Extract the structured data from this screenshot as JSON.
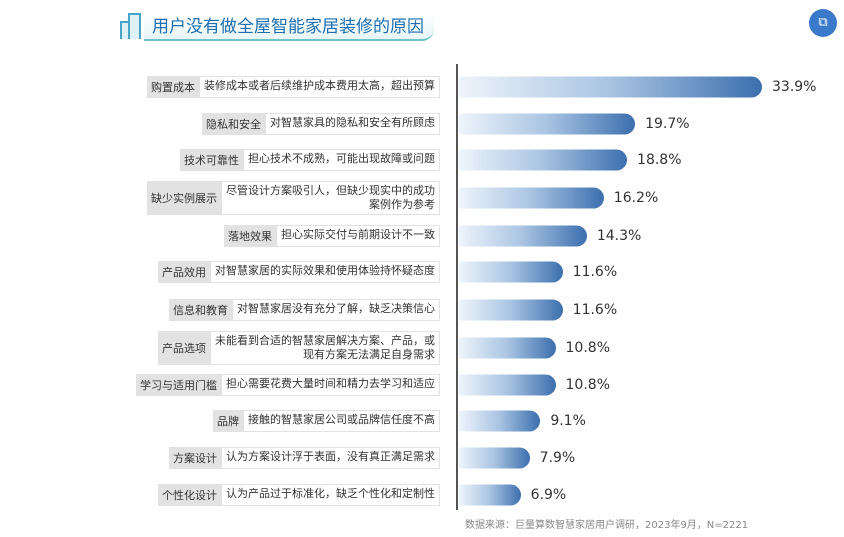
{
  "title": "用户没有做全屋智能家居装修的原因",
  "source": "数据来源：巨量算数智慧家居用户调研，2023年9月，N=2221",
  "colors": {
    "bar_end": "#3c6fae",
    "bar_start": "#eef4fb",
    "title": "#1f6fb0"
  },
  "chart_data": {
    "type": "bar",
    "orientation": "horizontal",
    "title": "用户没有做全屋智能家居装修的原因",
    "categories": [
      "购置成本",
      "隐私和安全",
      "技术可靠性",
      "缺少实例展示",
      "落地效果",
      "产品效用",
      "信息和教育",
      "产品选项",
      "学习与适用门槛",
      "品牌",
      "方案设计",
      "个性化设计"
    ],
    "descriptions": [
      "装修成本或者后续维护成本费用太高，超出预算",
      "对智慧家具的隐私和安全有所顾虑",
      "担心技术不成熟，可能出现故障或问题",
      "尽管设计方案吸引人，但缺少现实中的成功\n案例作为参考",
      "担心实际交付与前期设计不一致",
      "对智慧家居的实际效果和使用体验持怀疑态度",
      "对智慧家居没有充分了解，缺乏决策信心",
      "未能看到合适的智慧家居解决方案、产品，或\n现有方案无法满足自身需求",
      "担心需要花费大量时间和精力去学习和适应",
      "接触的智慧家居公司或品牌信任度不高",
      "认为方案设计浮于表面，没有真正满足需求",
      "认为产品过于标准化，缺乏个性化和定制性"
    ],
    "values": [
      33.9,
      19.7,
      18.8,
      16.2,
      14.3,
      11.6,
      11.6,
      10.8,
      10.8,
      9.1,
      7.9,
      6.9
    ],
    "labels": [
      "33.9%",
      "19.7%",
      "18.8%",
      "16.2%",
      "14.3%",
      "11.6%",
      "11.6%",
      "10.8%",
      "10.8%",
      "9.1%",
      "7.9%",
      "6.9%"
    ],
    "unit": "%",
    "grid": false
  }
}
